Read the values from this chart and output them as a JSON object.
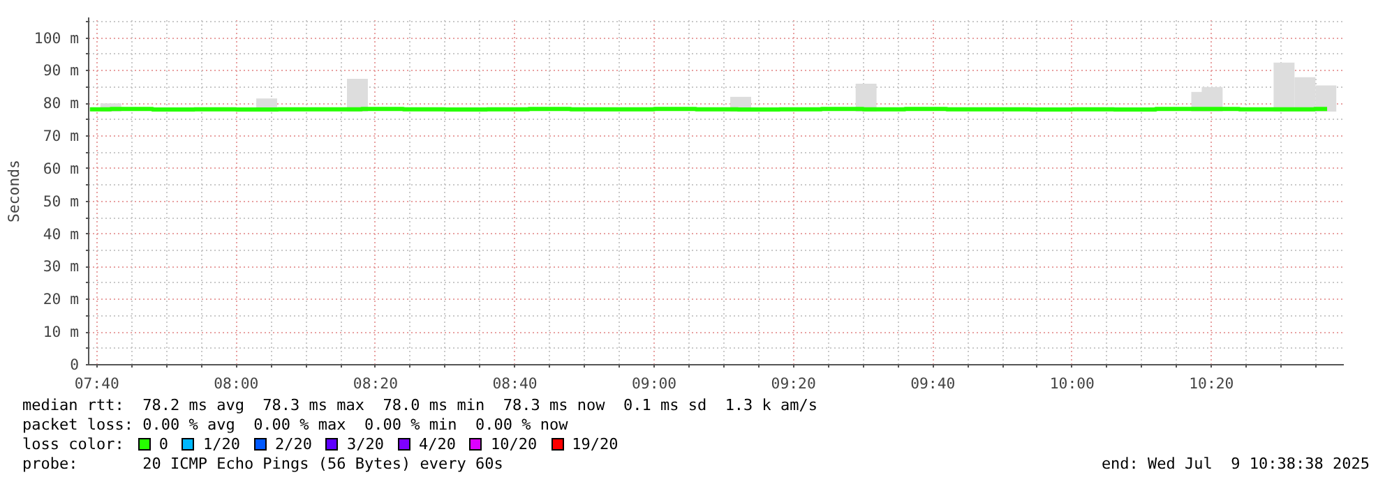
{
  "chart_data": {
    "type": "step",
    "ylabel": "Seconds",
    "xlim": [
      7.647,
      10.65
    ],
    "ylim": [
      0,
      106.3
    ],
    "xticks": [
      {
        "value": 7.6667,
        "label": "07:40"
      },
      {
        "value": 7.75,
        "label": null
      },
      {
        "value": 7.8333,
        "label": null
      },
      {
        "value": 7.9167,
        "label": null
      },
      {
        "value": 8.0,
        "label": "08:00"
      },
      {
        "value": 8.0833,
        "label": null
      },
      {
        "value": 8.1667,
        "label": null
      },
      {
        "value": 8.25,
        "label": null
      },
      {
        "value": 8.3333,
        "label": "08:20"
      },
      {
        "value": 8.4167,
        "label": null
      },
      {
        "value": 8.5,
        "label": null
      },
      {
        "value": 8.5833,
        "label": null
      },
      {
        "value": 8.6667,
        "label": "08:40"
      },
      {
        "value": 8.75,
        "label": null
      },
      {
        "value": 8.8333,
        "label": null
      },
      {
        "value": 8.9167,
        "label": null
      },
      {
        "value": 9.0,
        "label": "09:00"
      },
      {
        "value": 9.0833,
        "label": null
      },
      {
        "value": 9.1667,
        "label": null
      },
      {
        "value": 9.25,
        "label": null
      },
      {
        "value": 9.3333,
        "label": "09:20"
      },
      {
        "value": 9.4167,
        "label": null
      },
      {
        "value": 9.5,
        "label": null
      },
      {
        "value": 9.5833,
        "label": null
      },
      {
        "value": 9.6667,
        "label": "09:40"
      },
      {
        "value": 9.75,
        "label": null
      },
      {
        "value": 9.8333,
        "label": null
      },
      {
        "value": 9.9167,
        "label": null
      },
      {
        "value": 10.0,
        "label": "10:00"
      },
      {
        "value": 10.0833,
        "label": null
      },
      {
        "value": 10.1667,
        "label": null
      },
      {
        "value": 10.25,
        "label": null
      },
      {
        "value": 10.3333,
        "label": "10:20"
      },
      {
        "value": 10.4167,
        "label": null
      },
      {
        "value": 10.5,
        "label": null
      },
      {
        "value": 10.5833,
        "label": null
      }
    ],
    "yticks": [
      0,
      {
        "value": 5,
        "label": null
      },
      {
        "value": 10,
        "label": "10 m"
      },
      {
        "value": 15,
        "label": null
      },
      {
        "value": 20,
        "label": "20 m"
      },
      {
        "value": 25,
        "label": null
      },
      {
        "value": 30,
        "label": "30 m"
      },
      {
        "value": 35,
        "label": null
      },
      {
        "value": 40,
        "label": "40 m"
      },
      {
        "value": 45,
        "label": null
      },
      {
        "value": 50,
        "label": "50 m"
      },
      {
        "value": 55,
        "label": null
      },
      {
        "value": 60,
        "label": "60 m"
      },
      {
        "value": 65,
        "label": null
      },
      {
        "value": 70,
        "label": "70 m"
      },
      {
        "value": 75,
        "label": null
      },
      {
        "value": 80,
        "label": "80 m"
      },
      {
        "value": 85,
        "label": null
      },
      {
        "value": 90,
        "label": "90 m"
      },
      {
        "value": 95,
        "label": null
      },
      {
        "value": 100,
        "label": "100 m"
      },
      {
        "value": 105,
        "label": null
      }
    ],
    "grid": true,
    "legend": "bottom",
    "legend_title": "loss color:",
    "series": [
      {
        "type": "bar",
        "color": "#dddddd",
        "x": [
          7.7,
          8.073,
          8.29,
          9.207,
          9.507,
          10.31,
          10.335,
          10.507,
          10.557,
          10.607
        ],
        "base": [
          77.5,
          77.5,
          77.5,
          77.5,
          77.5,
          77.5,
          77.5,
          77.5,
          77.5,
          77.5
        ],
        "values": [
          2.5,
          4,
          10,
          4.5,
          8.5,
          6,
          7.5,
          15,
          10.5,
          8
        ]
      },
      {
        "name": "0",
        "color": "#26ff00",
        "x": [
          7.65,
          7.75,
          7.85,
          7.95,
          8.05,
          8.15,
          8.25,
          8.35,
          8.45,
          8.55,
          8.65,
          8.75,
          8.85,
          8.95,
          9.05,
          9.15,
          9.25,
          9.35,
          9.45,
          9.55,
          9.65,
          9.75,
          9.85,
          9.95,
          10.05,
          10.15,
          10.25,
          10.35,
          10.45,
          10.55,
          10.61
        ],
        "values": [
          78.2,
          78.3,
          78.1,
          78.2,
          78.1,
          78.2,
          78.2,
          78.3,
          78.2,
          78.1,
          78.2,
          78.3,
          78.2,
          78.2,
          78.3,
          78.2,
          78.1,
          78.2,
          78.3,
          78.2,
          78.3,
          78.2,
          78.2,
          78.1,
          78.2,
          78.1,
          78.3,
          78.3,
          78.2,
          78.2,
          78.3
        ]
      },
      {
        "name": "1/20",
        "color": "#00b8ff"
      },
      {
        "name": "2/20",
        "color": "#0059ff"
      },
      {
        "name": "3/20",
        "color": "#5e00ff"
      },
      {
        "name": "4/20",
        "color": "#7e00ff"
      },
      {
        "name": "10/20",
        "color": "#dd00ff"
      },
      {
        "name": "19/20",
        "color": "#ff0000"
      }
    ],
    "annotations": [
      "median rtt:  78.2 ms avg  78.3 ms max  78.0 ms min  78.3 ms now  0.1 ms sd  1.3 k am/s",
      "packet loss: 0.00 % avg  0.00 % max  0.00 % min  0.00 % now",
      "probe:       20 ICMP Echo Pings (56 Bytes) every 60s",
      "end: Wed Jul  9 10:38:38 2025"
    ]
  }
}
